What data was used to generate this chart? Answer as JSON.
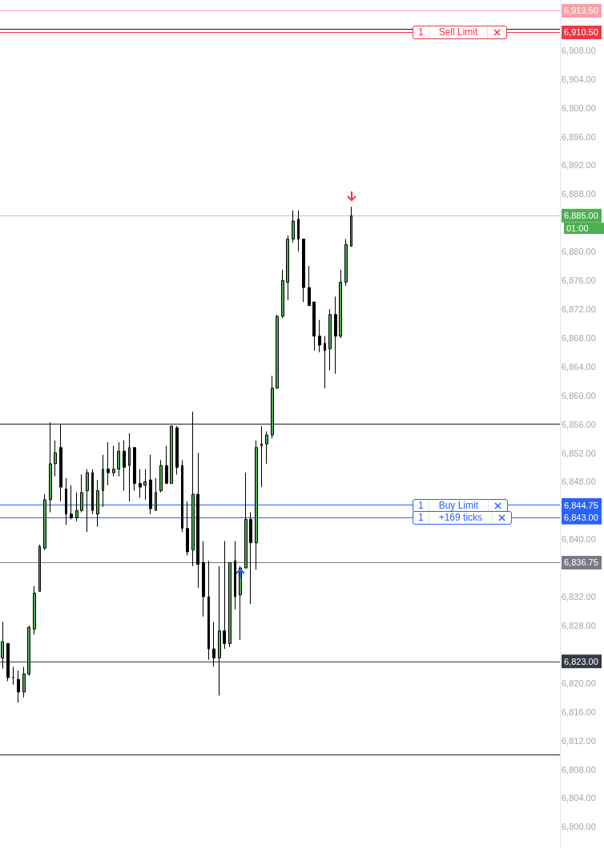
{
  "chart_data": {
    "type": "candlestick",
    "colors": [
      "#4caf50",
      "#000000",
      "#000000",
      "#000000",
      "#4caf50",
      "#4caf50",
      "#4caf50",
      "#4caf50",
      "#4caf50",
      "#4caf50",
      "#4caf50",
      "#000000",
      "#000000",
      "#000000",
      "#4caf50",
      "#4caf50",
      "#4caf50",
      "#000000",
      "#4caf50",
      "#4caf50",
      "#000000",
      "#4caf50",
      "#4caf50",
      "#000000",
      "#4caf50",
      "#000000",
      "#000000",
      "#4caf50",
      "#000000",
      "#4caf50",
      "#4caf50",
      "#000000",
      "#4caf50",
      "#000000",
      "#000000",
      "#000000",
      "#4caf50",
      "#000000",
      "#000000",
      "#000000",
      "#000000",
      "#4caf50",
      "#000000",
      "#4caf50",
      "#000000",
      "#4caf50",
      "#4caf50",
      "#000000",
      "#4caf50",
      "#4caf50",
      "#4caf50",
      "#4caf50",
      "#4caf50",
      "#4caf50",
      "#4caf50",
      "#4caf50",
      "#000000",
      "#000000",
      "#000000",
      "#000000",
      "#000000",
      "#000000",
      "#4caf50",
      "#000000",
      "#4caf50",
      "#4caf50",
      "#4caf50",
      null,
      null,
      null,
      null,
      null,
      null,
      null,
      null,
      null,
      null,
      null,
      null,
      null,
      null,
      null,
      null,
      null,
      null,
      null,
      null,
      null,
      null,
      null,
      null,
      null,
      null,
      null,
      null,
      null,
      null,
      null,
      null,
      null,
      null,
      null,
      null,
      null,
      null,
      null
    ],
    "categories": [
      null,
      null,
      null,
      null,
      null,
      null,
      null,
      null,
      null,
      null,
      null,
      null,
      null,
      null,
      null,
      null,
      null,
      null,
      null,
      null,
      null,
      null,
      null,
      null,
      null,
      null,
      null,
      null,
      null,
      null,
      null,
      null,
      null,
      null,
      null,
      null,
      null,
      null,
      null,
      null,
      null,
      null,
      null,
      null,
      null,
      null,
      null,
      null,
      null,
      null,
      null,
      null,
      null,
      null,
      null,
      null,
      null,
      null,
      null,
      null,
      null,
      null,
      null,
      null,
      null,
      null,
      null,
      null,
      null,
      null,
      null,
      null,
      null,
      null,
      null,
      null,
      null,
      null,
      null,
      null,
      null,
      null,
      null,
      null,
      null,
      null,
      null,
      null,
      null,
      null,
      null,
      null,
      null,
      null,
      null,
      null,
      null,
      null,
      null,
      null,
      null,
      null,
      null,
      null,
      null,
      null
    ],
    "ohlc": [
      [
        6823.5,
        6828.5,
        6822,
        6825.75
      ],
      [
        6825.5,
        6825.5,
        6820.25,
        6820.75
      ],
      [
        6820.75,
        6822.25,
        6819.75,
        6820.75
      ],
      [
        6820.5,
        6821.75,
        6817.25,
        6818.75
      ],
      [
        6818.75,
        6822.25,
        6818,
        6821.25
      ],
      [
        6821.25,
        6828,
        6821,
        6827.75
      ],
      [
        6827.5,
        6833.5,
        6826.75,
        6832.5
      ],
      [
        6832.75,
        6839.25,
        6832.75,
        6839
      ],
      [
        6838.75,
        6846.25,
        6838.5,
        6845.5
      ],
      [
        6845.5,
        6856.25,
        6843.75,
        6850.5
      ],
      [
        6850.5,
        6853.75,
        6848.75,
        6852
      ],
      [
        6852.75,
        6856,
        6845.25,
        6847.25
      ],
      [
        6847,
        6848.5,
        6842,
        6843.5
      ],
      [
        6843.5,
        6847.5,
        6842.75,
        6843
      ],
      [
        6843,
        6846.5,
        6842.5,
        6844
      ],
      [
        6844,
        6849,
        6843.75,
        6846.5
      ],
      [
        6846.75,
        6849.75,
        6841,
        6849.25
      ],
      [
        6849.25,
        6849.75,
        6843.5,
        6844
      ],
      [
        6843.5,
        6848.25,
        6841.75,
        6846.75
      ],
      [
        6846.75,
        6851.75,
        6844.5,
        6849.75
      ],
      [
        6849.75,
        6853.5,
        6847.5,
        6849.25
      ],
      [
        6849.25,
        6853,
        6848.75,
        6849.75
      ],
      [
        6849.75,
        6853.5,
        6848.75,
        6852.25
      ],
      [
        6852.25,
        6853.75,
        6846.75,
        6850
      ],
      [
        6850.25,
        6854.75,
        6845.25,
        6852.75
      ],
      [
        6852.75,
        6852.75,
        6846.75,
        6847.75
      ],
      [
        6847.75,
        6849.75,
        6845.75,
        6847.25
      ],
      [
        6847.5,
        6849.75,
        6845.5,
        6848
      ],
      [
        6848.25,
        6851.75,
        6843.5,
        6844.25
      ],
      [
        6844,
        6848.5,
        6844,
        6846.5
      ],
      [
        6846.75,
        6851,
        6846.5,
        6850.25
      ],
      [
        6850.25,
        6853,
        6847.75,
        6847.75
      ],
      [
        6847.75,
        6855.75,
        6847.75,
        6855.75
      ],
      [
        6855.5,
        6855.75,
        6849,
        6850
      ],
      [
        6850.25,
        6851,
        6841,
        6841.5
      ],
      [
        6841.5,
        6845.25,
        6837.75,
        6838.25
      ],
      [
        6838.5,
        6857.75,
        6836.25,
        6846.25
      ],
      [
        6846.25,
        6852,
        6833.25,
        6836.5
      ],
      [
        6836.75,
        6839.75,
        6829.25,
        6832
      ],
      [
        6832,
        6837,
        6823.25,
        6824.75
      ],
      [
        6824.75,
        6828.5,
        6822.25,
        6823.5
      ],
      [
        6823.5,
        6836.25,
        6818.25,
        6827.25
      ],
      [
        6827.25,
        6839.75,
        6824.75,
        6825.5
      ],
      [
        6825.5,
        6836.75,
        6825,
        6836.75
      ],
      [
        6837,
        6839.75,
        6830.25,
        6832
      ],
      [
        6832.25,
        6836.25,
        6826,
        6836
      ],
      [
        6836,
        6849.25,
        6836,
        6842.75
      ],
      [
        6842.75,
        6843.75,
        6831,
        6839.5
      ],
      [
        6839.5,
        6853.75,
        6835.75,
        6852.75
      ],
      [
        6853,
        6855.75,
        6847.25,
        6853.25
      ],
      [
        6853.25,
        6855,
        6850.5,
        6854.5
      ],
      [
        6854.5,
        6862.75,
        6854,
        6861
      ],
      [
        6861,
        6871.25,
        6861,
        6871
      ],
      [
        6871,
        6877.5,
        6870.75,
        6876
      ],
      [
        6875.75,
        6882.25,
        6873.25,
        6881.75
      ],
      [
        6881.75,
        6885.75,
        6881.25,
        6884.25
      ],
      [
        6884.5,
        6885.75,
        6880,
        6881.75
      ],
      [
        6881.75,
        6881.75,
        6873,
        6875
      ],
      [
        6875,
        6878,
        6872.5,
        6872.5
      ],
      [
        6873,
        6873,
        6866.25,
        6868.25
      ],
      [
        6868.25,
        6870.5,
        6866,
        6867
      ],
      [
        6867.25,
        6868.25,
        6861,
        6866.25
      ],
      [
        6866.5,
        6872,
        6863.5,
        6871.25
      ],
      [
        6871.25,
        6873.75,
        6863,
        6868.25
      ],
      [
        6868.25,
        6877.5,
        6868,
        6875.75
      ],
      [
        6875.75,
        6881.75,
        6875.25,
        6881
      ],
      [
        6880.75,
        6886.25,
        6880.75,
        6885
      ],
      null,
      null,
      null,
      null,
      null,
      null,
      null,
      null,
      null,
      null,
      null,
      null,
      null,
      null,
      null,
      null,
      null,
      null,
      null,
      null,
      null,
      null,
      null,
      null,
      null,
      null,
      null,
      null,
      null,
      null,
      null,
      null,
      null,
      null,
      null,
      null,
      null,
      null,
      null
    ],
    "ylim": [
      6797.25,
      6915
    ],
    "yticks": [
      {
        "value": 6800,
        "label": "6,800.00"
      },
      {
        "value": 6804,
        "label": "6,804.00"
      },
      {
        "value": 6808,
        "label": "6,808.00"
      },
      {
        "value": 6812,
        "label": "6,812.00"
      },
      {
        "value": 6816,
        "label": "6,816.00"
      },
      {
        "value": 6820,
        "label": "6,820.00"
      },
      {
        "value": 6823,
        "label": "6,823.00"
      },
      {
        "value": 6828,
        "label": "6,828.00"
      },
      {
        "value": 6832,
        "label": "6,832.00"
      },
      {
        "value": 6836.75,
        "label": "6,836.75"
      },
      {
        "value": 6840,
        "label": "6,840.00"
      },
      {
        "value": 6843,
        "label": "6,843.00"
      },
      {
        "value": 6844.75,
        "label": "6,844.75"
      },
      {
        "value": 6848,
        "label": "6,848.00"
      },
      {
        "value": 6852,
        "label": "6,852.00"
      },
      {
        "value": 6856,
        "label": "6,856.00"
      },
      {
        "value": 6860,
        "label": "6,860.00"
      },
      {
        "value": 6864,
        "label": "6,864.00"
      },
      {
        "value": 6868,
        "label": "6,868.00"
      },
      {
        "value": 6872,
        "label": "6,872.00"
      },
      {
        "value": 6876,
        "label": "6,876.00"
      },
      {
        "value": 6880,
        "label": "6,880.00"
      },
      {
        "value": 6885,
        "label": "6,885.00"
      },
      {
        "value": 6888,
        "label": "6,888.00"
      },
      {
        "value": 6892,
        "label": "6,892.00"
      },
      {
        "value": 6896,
        "label": "6,896.00"
      },
      {
        "value": 6900,
        "label": "6,900.00"
      },
      {
        "value": 6904,
        "label": "6,904.00"
      },
      {
        "value": 6908,
        "label": "6,908.00"
      },
      {
        "value": 6910.5,
        "label": "6,910.50"
      },
      {
        "value": 6913.5,
        "label": "6,913.50"
      }
    ],
    "ref_lines": [
      {
        "axis": "y",
        "value": 6913.5,
        "color": "#f7a1a8",
        "line_style": "solid"
      },
      {
        "axis": "y",
        "value": 6911,
        "color": "#131722",
        "line_style": "solid"
      },
      {
        "axis": "y",
        "value": 6910.5,
        "label": "Sell Limit",
        "color": "#f23645",
        "line_style": "solid"
      },
      {
        "axis": "y",
        "value": 6885,
        "color": "#4caf50",
        "line_style": "dotted"
      },
      {
        "axis": "y",
        "value": 6856,
        "color": "#131722",
        "line_style": "solid"
      },
      {
        "axis": "y",
        "value": 6844.75,
        "label": "Buy Limit",
        "color": "#2962ff",
        "line_style": "solid"
      },
      {
        "axis": "y",
        "value": 6843,
        "label": "+169 ticks",
        "color": "#2962ff",
        "line_style": "solid"
      },
      {
        "axis": "y",
        "value": 6836.75,
        "color": "#787b86",
        "line_style": "solid"
      },
      {
        "axis": "y",
        "value": 6823,
        "color": "#363a45",
        "line_style": "solid"
      },
      {
        "axis": "y",
        "value": 6810,
        "color": "#131722",
        "line_style": "solid"
      }
    ],
    "annotations": [
      {
        "text": "1",
        "y": 6910.5
      },
      {
        "text": "1",
        "y": 6844.75
      },
      {
        "text": "1",
        "y": 6843
      },
      "01:00"
    ],
    "grid": false
  }
}
